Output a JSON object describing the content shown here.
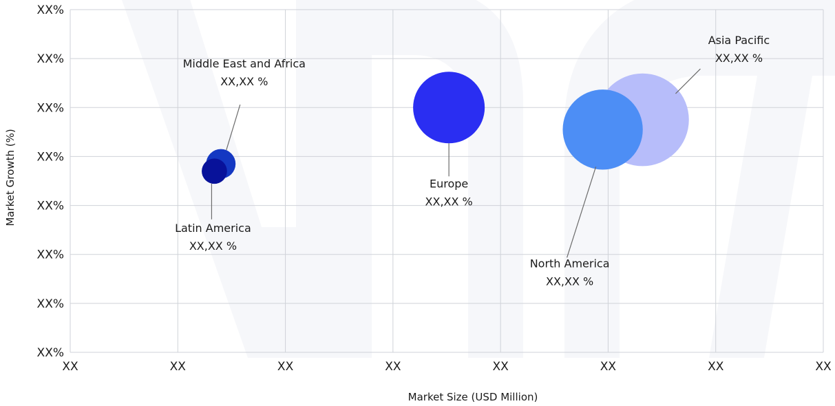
{
  "chart_data": {
    "type": "bubble",
    "title": "",
    "xlabel": "Market Size (USD Million)",
    "ylabel": "Market Growth (%)",
    "x_tick_labels": [
      "XX",
      "XX",
      "XX",
      "XX",
      "XX",
      "XX",
      "XX",
      "XX"
    ],
    "y_tick_labels": [
      "XX%",
      "XX%",
      "XX%",
      "XX%",
      "XX%",
      "XX%",
      "XX%",
      "XX%"
    ],
    "xlim": [
      0,
      7
    ],
    "ylim": [
      0,
      7
    ],
    "grid": true,
    "series": [
      {
        "name": "Asia Pacific",
        "x": 5.32,
        "y": 4.75,
        "size": 44,
        "color": "#b7bdfa",
        "value_label": "XX,XX %"
      },
      {
        "name": "North America",
        "x": 4.95,
        "y": 4.55,
        "size": 38,
        "color": "#4d8ef5",
        "value_label": "XX,XX %"
      },
      {
        "name": "Europe",
        "x": 3.52,
        "y": 5.0,
        "size": 34,
        "color": "#2a2ef2",
        "value_label": "XX,XX %"
      },
      {
        "name": "Middle East and Africa",
        "x": 1.4,
        "y": 3.85,
        "size": 14,
        "color": "#1438c2",
        "value_label": "XX,XX %"
      },
      {
        "name": "Latin America",
        "x": 1.34,
        "y": 3.7,
        "size": 12,
        "color": "#08129a",
        "value_label": "XX,XX %"
      }
    ]
  }
}
